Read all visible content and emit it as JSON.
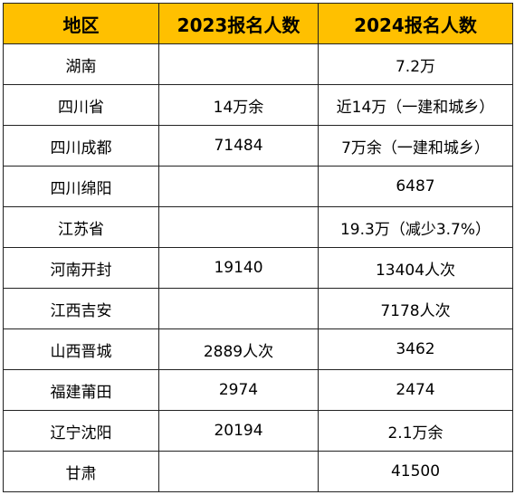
{
  "colors": {
    "header_bg": "#FFC000",
    "border": "#222222",
    "text": "#000000",
    "body_bg": "#FFFFFF"
  },
  "table": {
    "headers": [
      "地区",
      "2023报名人数",
      "2024报名人数"
    ],
    "rows": [
      [
        "湖南",
        "",
        "7.2万"
      ],
      [
        "四川省",
        "14万余",
        "近14万（一建和城乡）"
      ],
      [
        "四川成都",
        "71484",
        "7万余（一建和城乡）"
      ],
      [
        "四川绵阳",
        "",
        "6487"
      ],
      [
        "江苏省",
        "",
        "19.3万（减少3.7%）"
      ],
      [
        "河南开封",
        "19140",
        "13404人次"
      ],
      [
        "江西吉安",
        "",
        "7178人次"
      ],
      [
        "山西晋城",
        "2889人次",
        "3462"
      ],
      [
        "福建莆田",
        "2974",
        "2474"
      ],
      [
        "辽宁沈阳",
        "20194",
        "2.1万余"
      ],
      [
        "甘肃",
        "",
        "41500"
      ]
    ]
  }
}
